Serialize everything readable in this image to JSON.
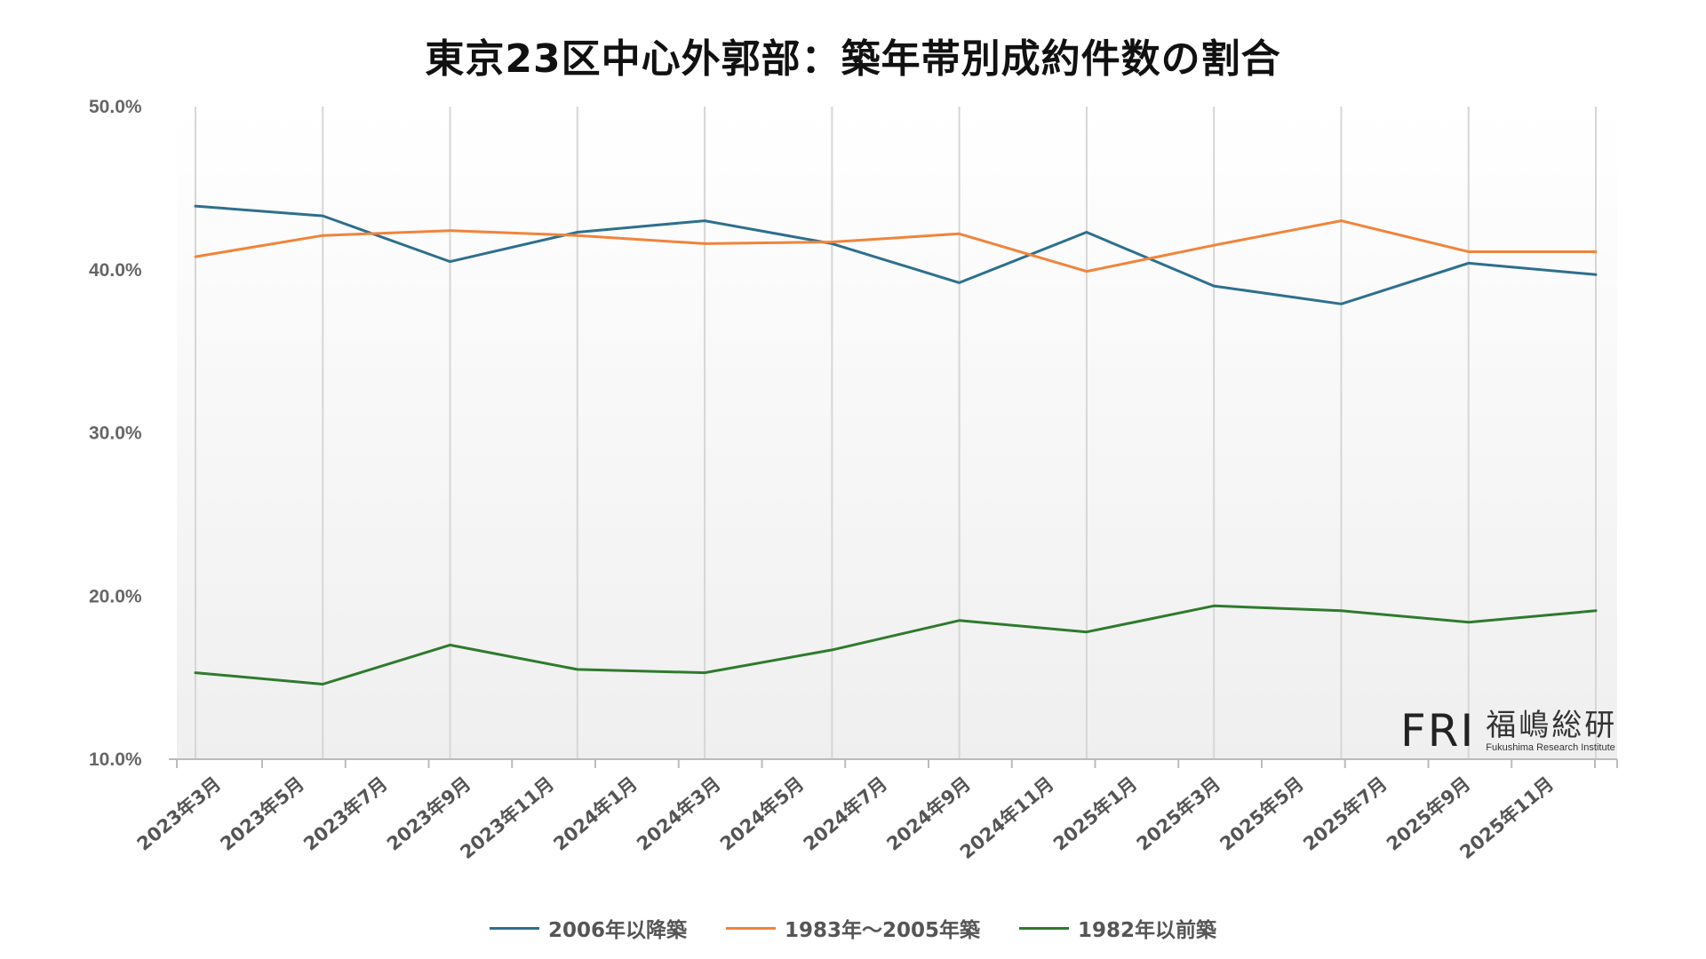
{
  "chart_data": {
    "type": "line",
    "title": "東京23区中心外郭部：築年帯別成約件数の割合",
    "xlabel": "",
    "ylabel": "",
    "ylim": [
      10,
      50
    ],
    "yticks": [
      "10.0%",
      "20.0%",
      "30.0%",
      "40.0%",
      "50.0%"
    ],
    "ytick_values": [
      10,
      20,
      30,
      40,
      50
    ],
    "x_labels": [
      "2023年3月",
      "2023年5月",
      "2023年7月",
      "2023年9月",
      "2023年11月",
      "2024年1月",
      "2024年3月",
      "2024年5月",
      "2024年7月",
      "2024年9月",
      "2024年11月",
      "2025年1月",
      "2025年3月",
      "2025年5月",
      "2025年7月",
      "2025年9月",
      "2025年11月"
    ],
    "points_count": 12,
    "grid": true,
    "legend_position": "bottom",
    "series": [
      {
        "name": "2006年以降築",
        "color": "#2e6f8e",
        "values": [
          43.9,
          43.3,
          40.5,
          42.3,
          43.0,
          41.6,
          39.2,
          42.3,
          39.0,
          37.9,
          40.4,
          39.7
        ]
      },
      {
        "name": "1983年～2005年築",
        "color": "#f0843c",
        "values": [
          40.8,
          42.1,
          42.4,
          42.1,
          41.6,
          41.7,
          42.2,
          39.9,
          41.5,
          43.0,
          41.1,
          41.1
        ]
      },
      {
        "name": "1982年以前築",
        "color": "#2e7a2e",
        "values": [
          15.3,
          14.6,
          17.0,
          15.5,
          15.3,
          16.7,
          18.5,
          17.8,
          19.4,
          19.1,
          18.4,
          19.1
        ]
      }
    ]
  },
  "logo": {
    "mark": "FRI",
    "name_jp": "福嶋総研",
    "name_en": "Fukushima Research Institute"
  }
}
